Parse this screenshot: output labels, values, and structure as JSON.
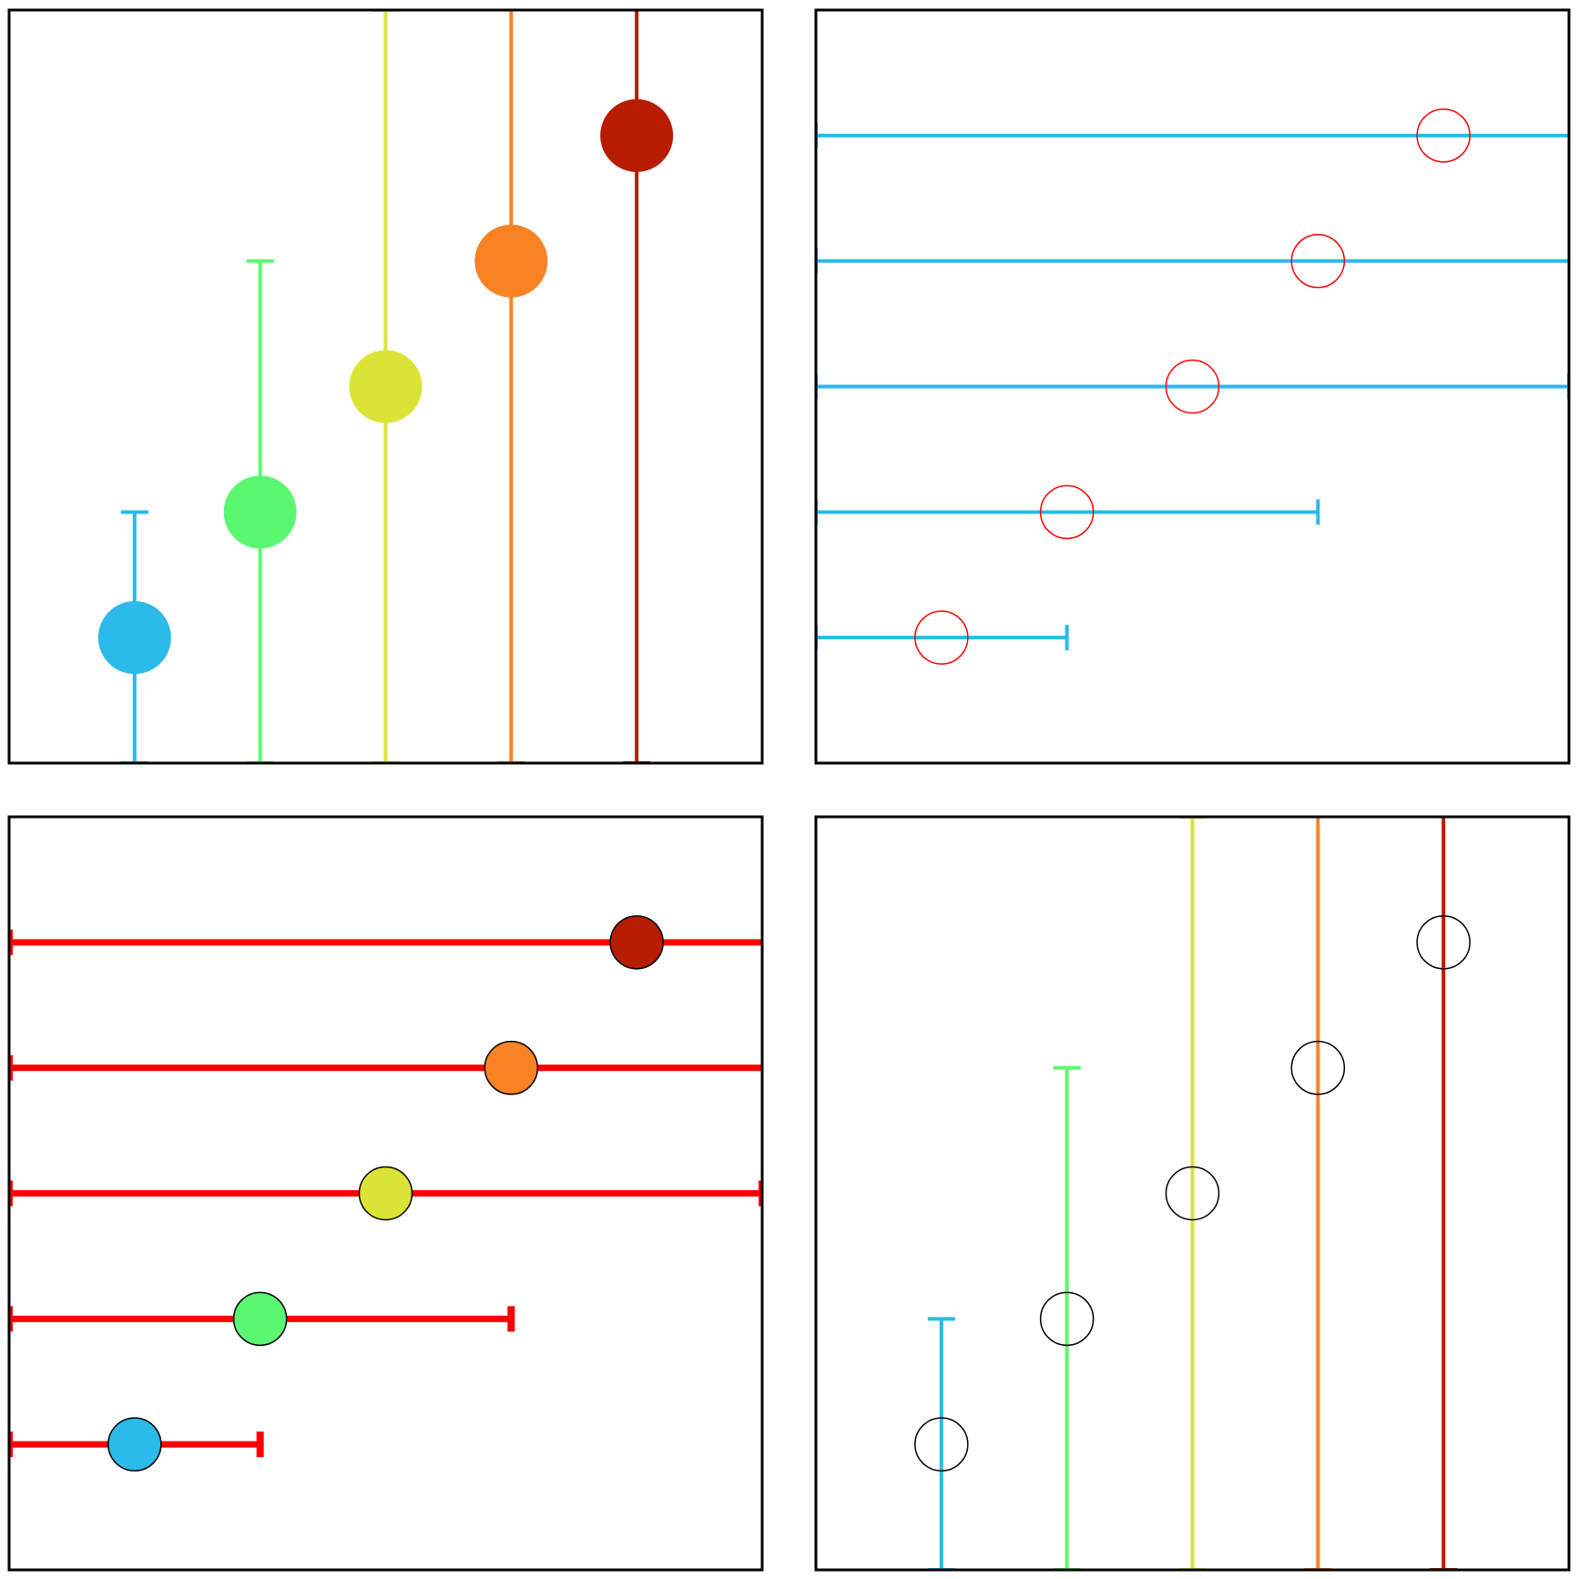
{
  "chart_data": [
    {
      "type": "scatter",
      "panel": "top-left",
      "orientation": "vertical",
      "x": [
        1,
        2,
        3,
        4,
        5
      ],
      "y": [
        1,
        2,
        3,
        4,
        5
      ],
      "yerr": [
        1,
        2,
        3,
        4,
        5
      ],
      "xlim": [
        0,
        6
      ],
      "ylim": [
        0,
        6
      ],
      "marker": "filled",
      "marker_colors": [
        "#2bbaea",
        "#5af871",
        "#dbe436",
        "#fb8223",
        "#b81d02"
      ],
      "errorbar_colors": [
        "#2bbaea",
        "#5af871",
        "#dbe436",
        "#fb8223",
        "#b81d02"
      ],
      "caps": true,
      "ticks": false,
      "grid": false
    },
    {
      "type": "scatter",
      "panel": "top-right",
      "orientation": "horizontal",
      "x": [
        1,
        2,
        3,
        4,
        5
      ],
      "y": [
        1,
        2,
        3,
        4,
        5
      ],
      "xerr": [
        1,
        2,
        3,
        4,
        5
      ],
      "xlim": [
        0,
        6
      ],
      "ylim": [
        0,
        6
      ],
      "marker": "hollow",
      "marker_edge_color": "#ff0000",
      "errorbar_color": "#2bbaea",
      "caps": true,
      "ticks": false,
      "grid": false
    },
    {
      "type": "scatter",
      "panel": "bottom-left",
      "orientation": "horizontal",
      "x": [
        1,
        2,
        3,
        4,
        5
      ],
      "y": [
        1,
        2,
        3,
        4,
        5
      ],
      "xerr": [
        1,
        2,
        3,
        4,
        5
      ],
      "xlim": [
        0,
        6
      ],
      "ylim": [
        0,
        6
      ],
      "marker": "filled-outlined",
      "marker_colors": [
        "#2bbaea",
        "#5af871",
        "#dbe436",
        "#fb8223",
        "#b81d02"
      ],
      "marker_edge_color": "#000000",
      "errorbar_color": "#ff0000",
      "caps": true,
      "ticks": false,
      "grid": false
    },
    {
      "type": "scatter",
      "panel": "bottom-right",
      "orientation": "vertical",
      "x": [
        1,
        2,
        3,
        4,
        5
      ],
      "y": [
        1,
        2,
        3,
        4,
        5
      ],
      "yerr": [
        1,
        2,
        3,
        4,
        5
      ],
      "xlim": [
        0,
        6
      ],
      "ylim": [
        0,
        6
      ],
      "marker": "hollow",
      "marker_edge_color": "#000000",
      "errorbar_colors": [
        "#2bbaea",
        "#5af871",
        "#dbe436",
        "#fb8223",
        "#b81d02"
      ],
      "caps": true,
      "ticks": false,
      "grid": false
    }
  ]
}
